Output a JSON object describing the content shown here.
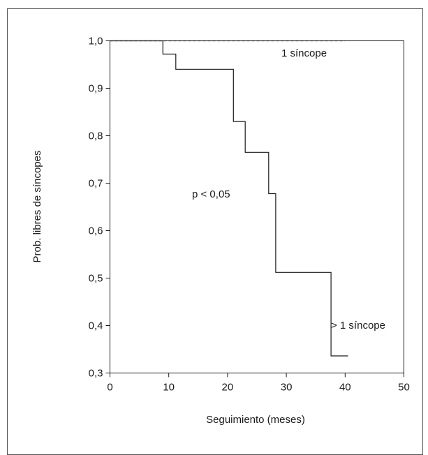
{
  "chart_data": {
    "type": "line",
    "subtype": "kaplan-meier-step",
    "xlabel": "Seguimiento (meses)",
    "ylabel": "Prob. libres de síncopes",
    "xlim": [
      0,
      50
    ],
    "ylim": [
      0.3,
      1.0
    ],
    "x_ticks": [
      0,
      10,
      20,
      30,
      40,
      50
    ],
    "x_tick_labels": [
      "0",
      "10",
      "20",
      "30",
      "40",
      "50"
    ],
    "y_ticks": [
      0.3,
      0.4,
      0.5,
      0.6,
      0.7,
      0.8,
      0.9,
      1.0
    ],
    "y_tick_labels": [
      "0,3",
      "0,4",
      "0,5",
      "0,6",
      "0,7",
      "0,8",
      "0,9",
      "1,0"
    ],
    "grid": false,
    "series": [
      {
        "name": "1 síncope",
        "line_style": "dashed",
        "color": "#1a1a1a",
        "points": [
          [
            0,
            1.0
          ],
          [
            40,
            1.0
          ]
        ]
      },
      {
        "name": "> 1 síncope",
        "line_style": "solid",
        "color": "#1a1a1a",
        "points": [
          [
            0,
            1.0
          ],
          [
            9,
            1.0
          ],
          [
            9,
            0.972
          ],
          [
            11.2,
            0.972
          ],
          [
            11.2,
            0.94
          ],
          [
            21,
            0.94
          ],
          [
            21,
            0.83
          ],
          [
            23,
            0.83
          ],
          [
            23,
            0.765
          ],
          [
            27,
            0.765
          ],
          [
            27,
            0.678
          ],
          [
            28.2,
            0.678
          ],
          [
            28.2,
            0.512
          ],
          [
            37.6,
            0.512
          ],
          [
            37.6,
            0.336
          ],
          [
            40.5,
            0.336
          ]
        ]
      }
    ],
    "annotations": [
      {
        "text": "p < 0,05",
        "x": 18.5,
        "y": 0.725
      }
    ]
  }
}
